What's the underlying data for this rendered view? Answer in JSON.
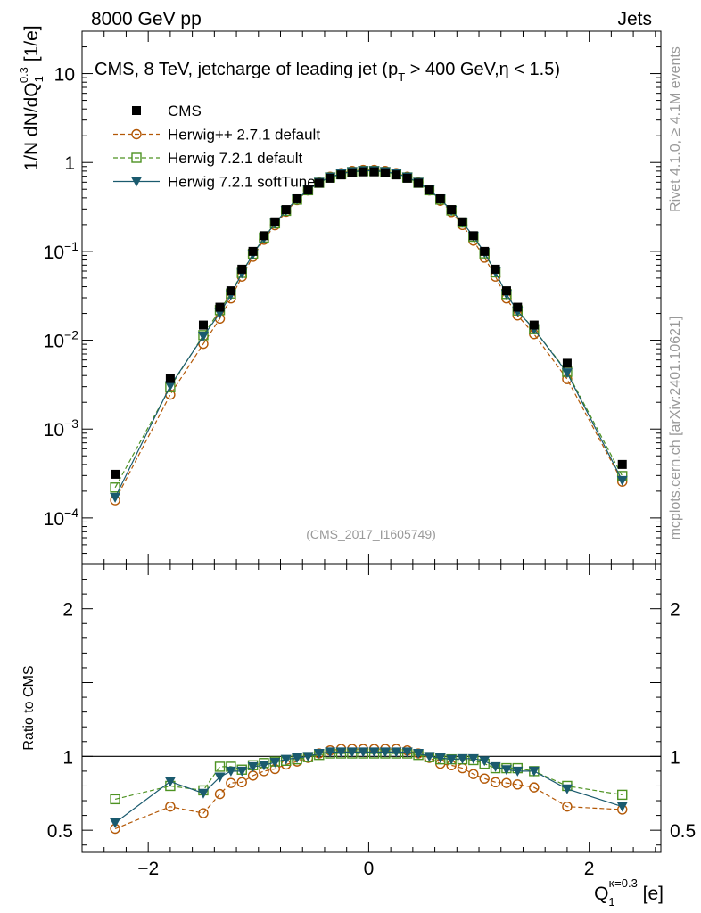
{
  "header": {
    "left": "8000 GeV pp",
    "right": "Jets"
  },
  "side_labels": {
    "rivet": "Rivet 4.1.0, ≥ 4.1M events",
    "mcplots": "mcplots.cern.ch [arXiv:2401.10621]"
  },
  "chart_data": {
    "type": "line",
    "title_parts": {
      "a": "CMS, 8 TeV, jetcharge of leading jet (p",
      "a_sub": "T",
      "b": " > 400 GeV,η < 1.5)"
    },
    "ylabel_parts": {
      "a": "1/N dN/dQ",
      "sub": "1",
      "sup": "0.3",
      "b": " [1/e]"
    },
    "xlabel_parts": {
      "a": "Q",
      "sub": "1",
      "sup": "κ=0.3",
      "b": " [e]"
    },
    "ratio_ylabel": "Ratio to CMS",
    "analysis_id": "(CMS_2017_I1605749)",
    "xlim": [
      -2.6,
      2.65
    ],
    "ylim_main": [
      3e-05,
      30
    ],
    "ylim_ratio": [
      0.35,
      2.3
    ],
    "x_ticks": [
      {
        "v": -2,
        "label": "−2"
      },
      {
        "v": 0,
        "label": "0"
      },
      {
        "v": 2,
        "label": "2"
      }
    ],
    "main_ticks": [
      {
        "exp": -4,
        "label": "10",
        "sup": "−4"
      },
      {
        "exp": -3,
        "label": "10",
        "sup": "−3"
      },
      {
        "exp": -2,
        "label": "10",
        "sup": "−2"
      },
      {
        "exp": -1,
        "label": "10",
        "sup": "−1"
      },
      {
        "exp": 0,
        "label": "1",
        "sup": ""
      },
      {
        "exp": 1,
        "label": "10",
        "sup": ""
      }
    ],
    "ratio_ticks": [
      {
        "v": 0.5,
        "label": "0.5"
      },
      {
        "v": 1,
        "label": "1"
      },
      {
        "v": 2,
        "label": "2"
      }
    ],
    "x": [
      -2.3,
      -1.8,
      -1.5,
      -1.35,
      -1.25,
      -1.15,
      -1.05,
      -0.95,
      -0.85,
      -0.75,
      -0.65,
      -0.55,
      -0.45,
      -0.35,
      -0.25,
      -0.15,
      -0.05,
      0.05,
      0.15,
      0.25,
      0.35,
      0.45,
      0.55,
      0.65,
      0.75,
      0.85,
      0.95,
      1.05,
      1.15,
      1.25,
      1.35,
      1.5,
      1.8,
      2.3
    ],
    "series": [
      {
        "name": "CMS",
        "style": "data",
        "color": "#000000",
        "values": [
          0.00031,
          0.0037,
          0.0148,
          0.0235,
          0.036,
          0.063,
          0.1,
          0.15,
          0.215,
          0.295,
          0.39,
          0.49,
          0.585,
          0.665,
          0.725,
          0.765,
          0.785,
          0.785,
          0.765,
          0.725,
          0.665,
          0.585,
          0.49,
          0.39,
          0.295,
          0.215,
          0.15,
          0.1,
          0.063,
          0.036,
          0.0235,
          0.0148,
          0.0055,
          0.0004
        ],
        "ratio": [
          1,
          1,
          1,
          1,
          1,
          1,
          1,
          1,
          1,
          1,
          1,
          1,
          1,
          1,
          1,
          1,
          1,
          1,
          1,
          1,
          1,
          1,
          1,
          1,
          1,
          1,
          1,
          1,
          1,
          1,
          1,
          1,
          1,
          1
        ]
      },
      {
        "name": "Herwig++ 2.7.1 default",
        "style": "circle-dashed",
        "color": "#b35806",
        "values": [
          0.000158,
          0.00244,
          0.0091,
          0.0175,
          0.0295,
          0.052,
          0.087,
          0.135,
          0.197,
          0.279,
          0.377,
          0.485,
          0.597,
          0.692,
          0.76,
          0.803,
          0.825,
          0.825,
          0.803,
          0.76,
          0.692,
          0.597,
          0.485,
          0.37,
          0.277,
          0.198,
          0.132,
          0.085,
          0.052,
          0.0295,
          0.019,
          0.0117,
          0.00365,
          0.000256
        ],
        "ratio": [
          0.51,
          0.66,
          0.615,
          0.745,
          0.82,
          0.825,
          0.87,
          0.9,
          0.915,
          0.945,
          0.965,
          0.99,
          1.02,
          1.04,
          1.05,
          1.05,
          1.05,
          1.05,
          1.05,
          1.05,
          1.04,
          1.02,
          0.99,
          0.95,
          0.94,
          0.92,
          0.88,
          0.85,
          0.825,
          0.82,
          0.81,
          0.79,
          0.66,
          0.64
        ]
      },
      {
        "name": "Herwig 7.2.1 default",
        "style": "square-dashed",
        "color": "#4d9221",
        "values": [
          0.00022,
          0.00296,
          0.0114,
          0.0218,
          0.0335,
          0.0573,
          0.094,
          0.143,
          0.207,
          0.286,
          0.382,
          0.487,
          0.591,
          0.678,
          0.739,
          0.78,
          0.801,
          0.801,
          0.78,
          0.739,
          0.678,
          0.591,
          0.487,
          0.382,
          0.289,
          0.211,
          0.146,
          0.095,
          0.058,
          0.0331,
          0.0216,
          0.0133,
          0.0044,
          0.000296
        ],
        "ratio": [
          0.71,
          0.8,
          0.77,
          0.93,
          0.93,
          0.91,
          0.94,
          0.955,
          0.965,
          0.97,
          0.98,
          0.995,
          1.01,
          1.02,
          1.02,
          1.02,
          1.02,
          1.02,
          1.02,
          1.02,
          1.02,
          1.01,
          0.995,
          0.98,
          0.98,
          0.98,
          0.975,
          0.95,
          0.92,
          0.92,
          0.92,
          0.9,
          0.8,
          0.74
        ]
      },
      {
        "name": "Herwig 7.2.1 softTune",
        "style": "triangle-solid",
        "color": "#1a5a6e",
        "values": [
          0.00017,
          0.00307,
          0.0111,
          0.0202,
          0.0324,
          0.0567,
          0.093,
          0.141,
          0.206,
          0.289,
          0.386,
          0.49,
          0.597,
          0.685,
          0.747,
          0.788,
          0.809,
          0.809,
          0.788,
          0.747,
          0.685,
          0.597,
          0.49,
          0.386,
          0.289,
          0.212,
          0.148,
          0.097,
          0.0586,
          0.0328,
          0.0212,
          0.0133,
          0.00429,
          0.000264
        ],
        "ratio": [
          0.55,
          0.83,
          0.75,
          0.86,
          0.9,
          0.9,
          0.93,
          0.94,
          0.96,
          0.98,
          0.99,
          1.0,
          1.02,
          1.03,
          1.03,
          1.03,
          1.03,
          1.03,
          1.03,
          1.03,
          1.03,
          1.02,
          1.0,
          0.99,
          0.98,
          0.985,
          0.985,
          0.97,
          0.93,
          0.91,
          0.9,
          0.9,
          0.78,
          0.66
        ]
      }
    ]
  }
}
